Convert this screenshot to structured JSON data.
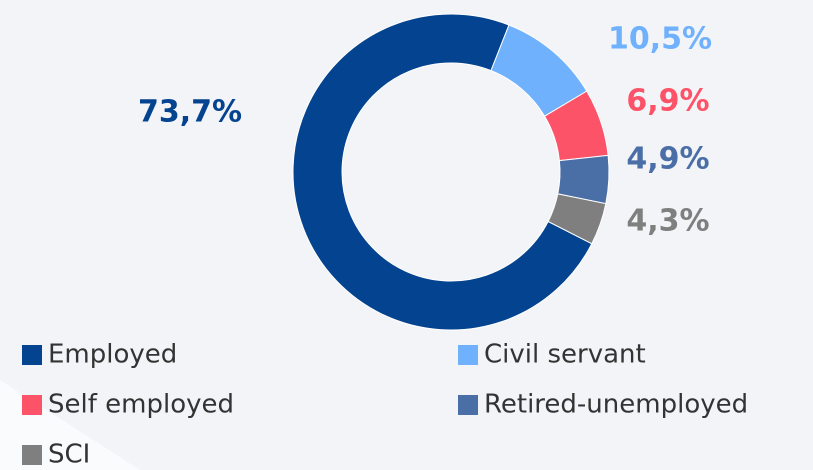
{
  "chart_data": {
    "type": "donut",
    "categories": [
      "Employed",
      "Civil servant",
      "Self employed",
      "Retired-unemployed",
      "SCI"
    ],
    "values": [
      73.7,
      10.5,
      6.9,
      4.9,
      4.3
    ],
    "value_labels": [
      "73,7%",
      "10,5%",
      "6,9%",
      "4,9%",
      "4,3%"
    ],
    "colors": [
      "#03438f",
      "#6fb1fd",
      "#fc5368",
      "#4a6ea6",
      "#7f7f7f"
    ]
  }
}
